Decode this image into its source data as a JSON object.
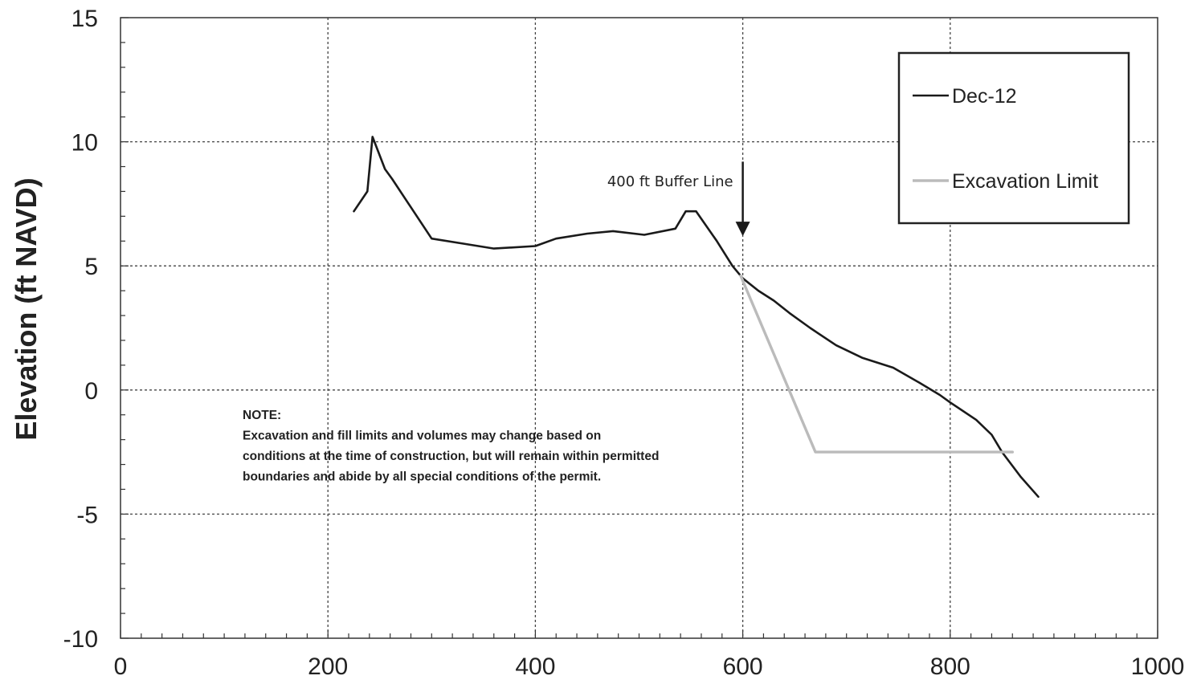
{
  "chart_data": {
    "type": "line",
    "title": "",
    "xlabel": "",
    "ylabel": "Elevation (ft NAVD)",
    "xlim": [
      0,
      1000
    ],
    "ylim": [
      -10,
      15
    ],
    "x_ticks": [
      0,
      200,
      400,
      600,
      800,
      1000
    ],
    "y_ticks": [
      -10,
      -5,
      0,
      5,
      10,
      15
    ],
    "x_tick_labels": [
      "0",
      "200",
      "400",
      "600",
      "800",
      "1000"
    ],
    "y_tick_labels": [
      "-10",
      "-5",
      "0",
      "5",
      "10",
      "15"
    ],
    "grid": true,
    "legend_position": "top-right",
    "series": [
      {
        "name": "Dec-12",
        "color": "#1a1a1a",
        "points": [
          [
            225,
            7.2
          ],
          [
            238,
            8.0
          ],
          [
            243,
            10.2
          ],
          [
            255,
            8.9
          ],
          [
            262,
            8.5
          ],
          [
            300,
            6.1
          ],
          [
            330,
            5.9
          ],
          [
            360,
            5.7
          ],
          [
            400,
            5.8
          ],
          [
            420,
            6.1
          ],
          [
            450,
            6.3
          ],
          [
            475,
            6.4
          ],
          [
            505,
            6.25
          ],
          [
            535,
            6.5
          ],
          [
            545,
            7.2
          ],
          [
            555,
            7.2
          ],
          [
            575,
            6.0
          ],
          [
            590,
            5.0
          ],
          [
            600,
            4.5
          ],
          [
            615,
            4.0
          ],
          [
            630,
            3.6
          ],
          [
            645,
            3.1
          ],
          [
            665,
            2.5
          ],
          [
            690,
            1.8
          ],
          [
            715,
            1.3
          ],
          [
            745,
            0.9
          ],
          [
            770,
            0.3
          ],
          [
            790,
            -0.2
          ],
          [
            800,
            -0.5
          ],
          [
            825,
            -1.2
          ],
          [
            840,
            -1.8
          ],
          [
            850,
            -2.5
          ],
          [
            868,
            -3.5
          ],
          [
            885,
            -4.3
          ]
        ]
      },
      {
        "name": "Excavation Limit",
        "color": "#bbbbbb",
        "points": [
          [
            598,
            4.6
          ],
          [
            670,
            -2.5
          ],
          [
            860,
            -2.5
          ]
        ]
      }
    ],
    "annotations": [
      {
        "text": "400 ft Buffer Line",
        "x": 600,
        "y_from": 9.2,
        "y_to": 6.2
      }
    ],
    "note": {
      "lines": [
        "NOTE:",
        "Excavation and fill limits and volumes may change based on",
        "conditions at the time of construction, but will remain within permitted",
        "boundaries and abide by all special conditions of the permit."
      ]
    },
    "legend": [
      {
        "label": "Dec-12",
        "color": "#1a1a1a"
      },
      {
        "label": "Excavation Limit",
        "color": "#bbbbbb"
      }
    ]
  }
}
